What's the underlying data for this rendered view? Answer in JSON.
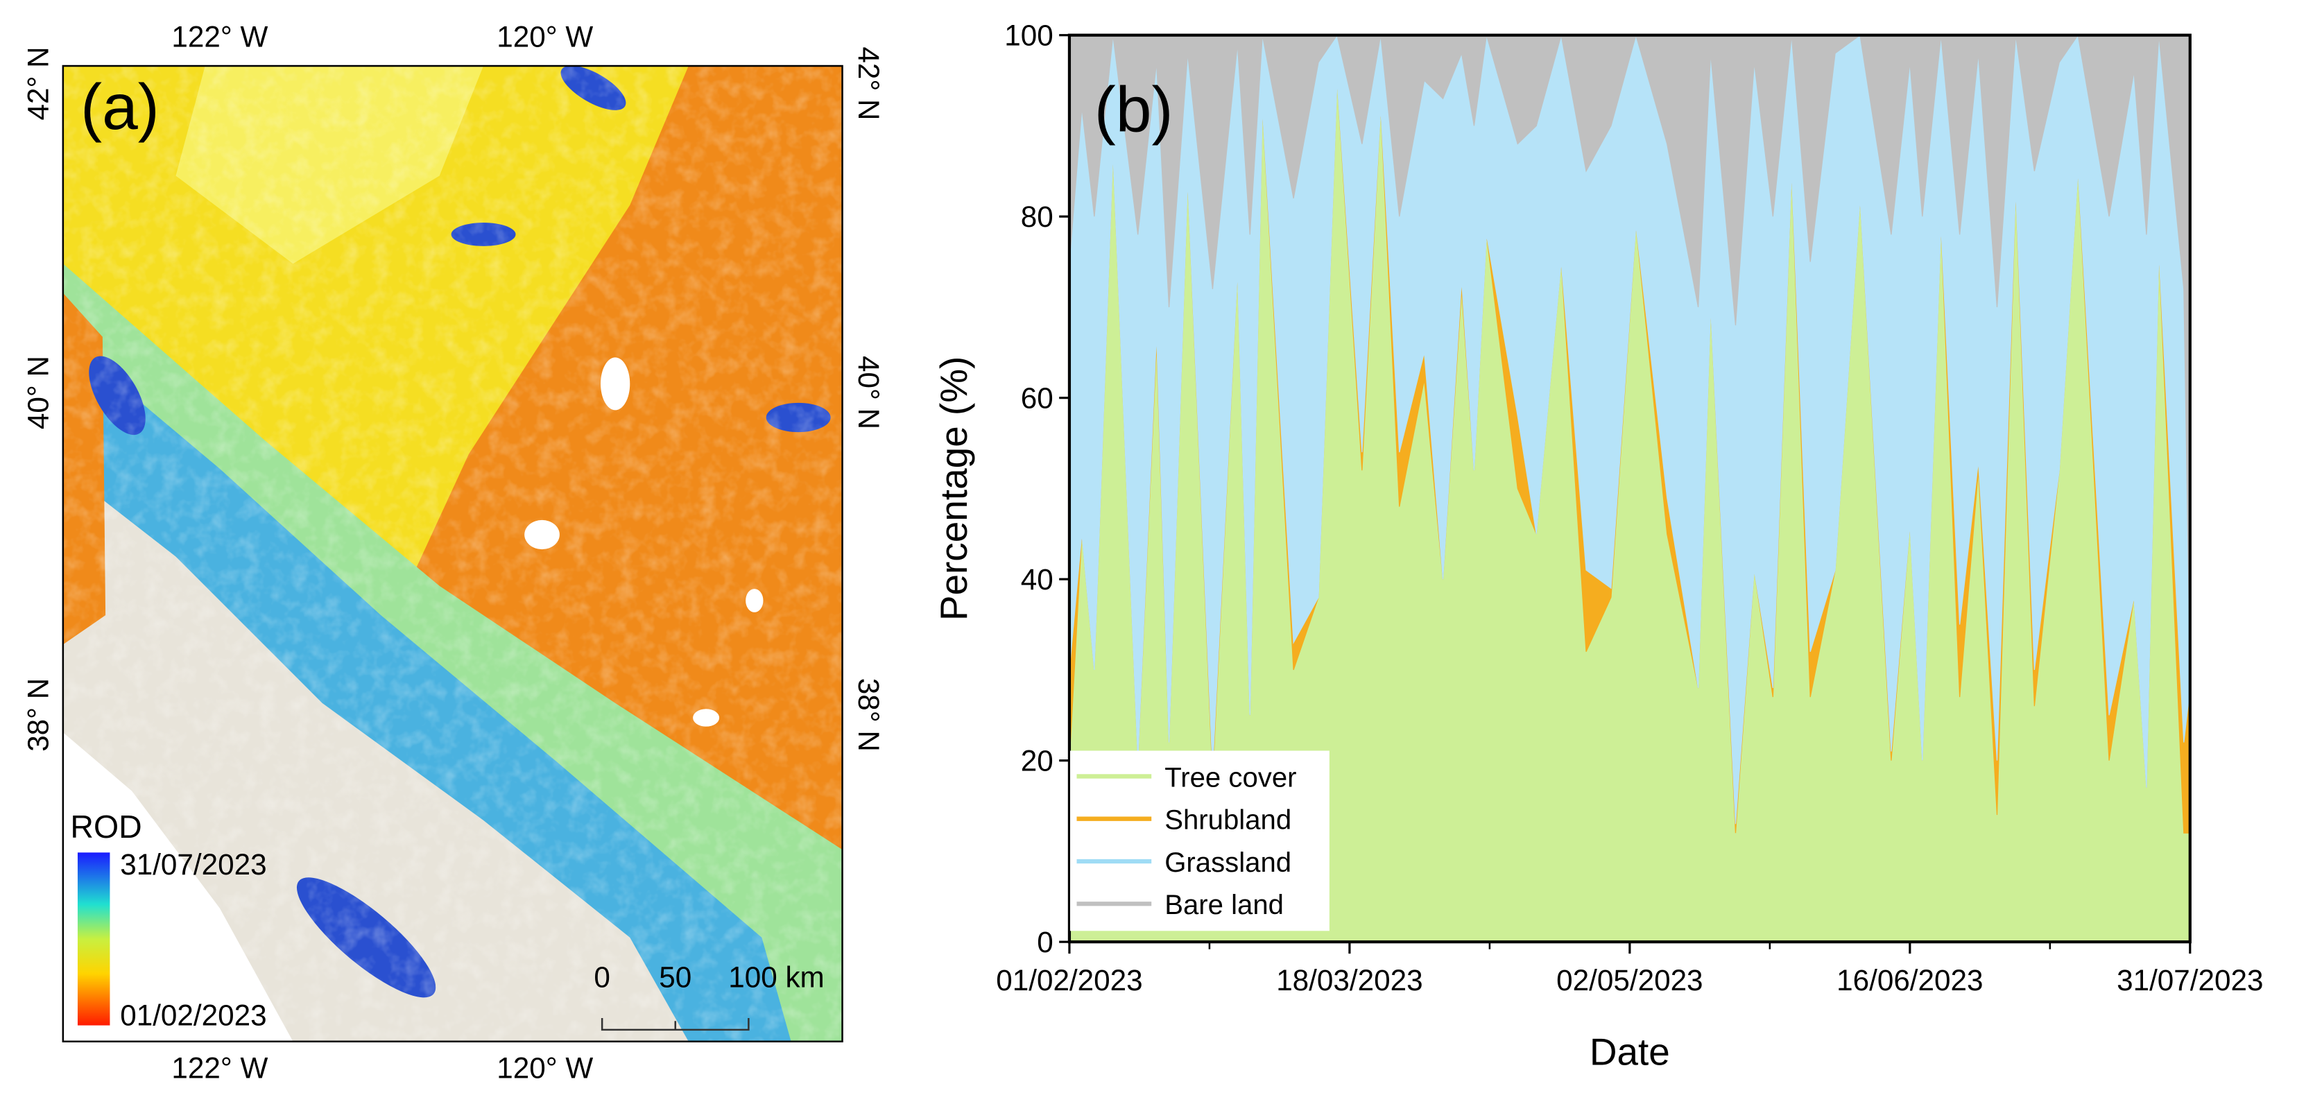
{
  "map": {
    "panel_label": "(a)",
    "lon_labels_top": [
      "122° W",
      "120° W"
    ],
    "lon_labels_bottom": [
      "122° W",
      "120° W"
    ],
    "lat_labels_left": [
      "42° N",
      "40° N",
      "38° N"
    ],
    "lat_labels_right": [
      "42° N",
      "40° N",
      "38° N"
    ],
    "legend": {
      "title": "ROD",
      "max_label": "31/07/2023",
      "min_label": "01/02/2023"
    },
    "scale_bar": [
      "0",
      "50",
      "100 km"
    ]
  },
  "chart_data": {
    "type": "stacked_area",
    "panel_label": "(b)",
    "x_label": "Date",
    "y_label": "Percentage (%)",
    "x": [
      "01/02/2023",
      "03/02/2023",
      "05/02/2023",
      "08/02/2023",
      "12/02/2023",
      "15/02/2023",
      "17/02/2023",
      "20/02/2023",
      "24/02/2023",
      "28/02/2023",
      "02/03/2023",
      "04/03/2023",
      "09/03/2023",
      "13/03/2023",
      "16/03/2023",
      "20/03/2023",
      "23/03/2023",
      "26/03/2023",
      "30/03/2023",
      "02/04/2023",
      "05/04/2023",
      "07/04/2023",
      "09/04/2023",
      "14/04/2023",
      "17/04/2023",
      "21/04/2023",
      "25/04/2023",
      "29/04/2023",
      "03/05/2023",
      "08/05/2023",
      "13/05/2023",
      "15/05/2023",
      "19/05/2023",
      "22/05/2023",
      "25/05/2023",
      "28/05/2023",
      "31/05/2023",
      "04/06/2023",
      "08/06/2023",
      "13/06/2023",
      "16/06/2023",
      "18/06/2023",
      "21/06/2023",
      "24/06/2023",
      "27/06/2023",
      "30/06/2023",
      "03/07/2023",
      "06/07/2023",
      "10/07/2023",
      "13/07/2023",
      "18/07/2023",
      "22/07/2023",
      "24/07/2023",
      "26/07/2023",
      "30/07/2023",
      "31/07/2023"
    ],
    "series": [
      {
        "name": "Tree cover",
        "color": "#cdef96",
        "values": [
          20,
          45,
          30,
          87,
          20,
          66,
          22,
          84,
          18,
          74,
          25,
          92,
          30,
          38,
          95,
          52,
          92,
          48,
          62,
          40,
          72,
          52,
          78,
          50,
          45,
          75,
          32,
          38,
          79,
          45,
          28,
          70,
          12,
          41,
          27,
          85,
          27,
          41,
          82,
          20,
          46,
          20,
          79,
          27,
          52,
          14,
          83,
          26,
          52,
          85,
          20,
          38,
          17,
          76,
          12,
          12
        ]
      },
      {
        "name": "Shrubland",
        "color": "#f5ad1f",
        "values": [
          10,
          0,
          0,
          0,
          0,
          1,
          0,
          0,
          1,
          0,
          0,
          0,
          3,
          0,
          0,
          2,
          0,
          6,
          3,
          0,
          1,
          0,
          0,
          8,
          0,
          0,
          9,
          1,
          0,
          4,
          0,
          0,
          1,
          0,
          1,
          0,
          5,
          0,
          0,
          1,
          0,
          0,
          0,
          8,
          1,
          6,
          0,
          4,
          0,
          0,
          5,
          0,
          0,
          0,
          10,
          16
        ]
      },
      {
        "name": "Grassland",
        "color": "#b6e3f8",
        "values": [
          45,
          47,
          50,
          13,
          58,
          30,
          48,
          14,
          53,
          25,
          53,
          8,
          49,
          59,
          5,
          34,
          8,
          26,
          30,
          53,
          25,
          38,
          22,
          30,
          45,
          25,
          44,
          51,
          21,
          39,
          42,
          28,
          55,
          56,
          52,
          15,
          43,
          57,
          18,
          57,
          51,
          60,
          21,
          43,
          45,
          50,
          17,
          55,
          45,
          15,
          55,
          58,
          61,
          24,
          50,
          2
        ]
      },
      {
        "name": "Bare land",
        "color": "#c0c0c0",
        "values": [
          25,
          8,
          20,
          0,
          22,
          3,
          30,
          2,
          28,
          1,
          22,
          0,
          18,
          3,
          0,
          12,
          0,
          20,
          5,
          7,
          2,
          10,
          0,
          12,
          10,
          0,
          15,
          10,
          0,
          12,
          30,
          2,
          32,
          3,
          20,
          0,
          25,
          2,
          0,
          22,
          3,
          20,
          0,
          22,
          2,
          30,
          0,
          15,
          3,
          0,
          20,
          4,
          22,
          0,
          28,
          70
        ]
      }
    ],
    "xlim": [
      "01/02/2023",
      "31/07/2023"
    ],
    "xticks": [
      "01/02/2023",
      "18/03/2023",
      "02/05/2023",
      "16/06/2023",
      "31/07/2023"
    ],
    "ylim": [
      0,
      100
    ],
    "yticks": [
      0,
      20,
      40,
      60,
      80,
      100
    ],
    "legend": "lower left"
  }
}
